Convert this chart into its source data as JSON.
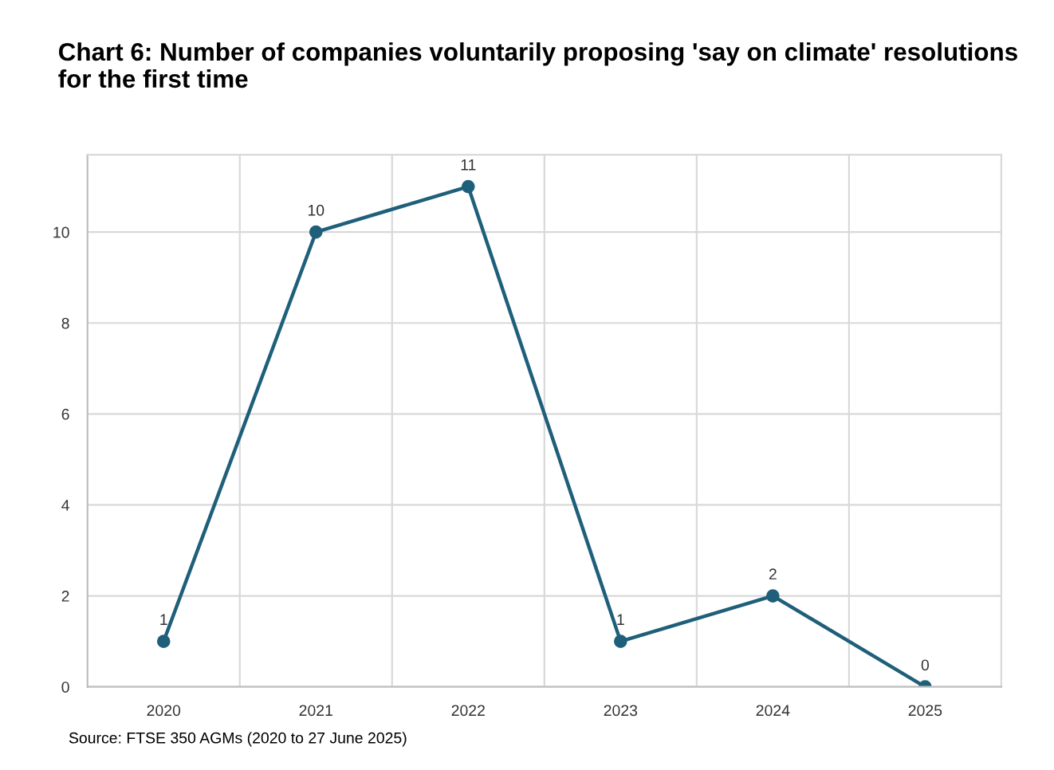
{
  "chart_data": {
    "type": "line",
    "title": "Chart 6: Number of companies voluntarily proposing 'say on climate' resolutions for the first time",
    "categories": [
      "2020",
      "2021",
      "2022",
      "2023",
      "2024",
      "2025"
    ],
    "series": [
      {
        "color": "#1f5f7a",
        "values": [
          1,
          10,
          11,
          1,
          2,
          0
        ]
      }
    ],
    "ylim": [
      0,
      11.7
    ],
    "yticks": [
      0,
      2,
      4,
      6,
      8,
      10
    ],
    "grid": true,
    "marker": "circle",
    "line_style": "solid",
    "data_labels": true,
    "annotations": [
      "Source: FTSE 350 AGMs (2020 to 27 June 2025)"
    ]
  }
}
